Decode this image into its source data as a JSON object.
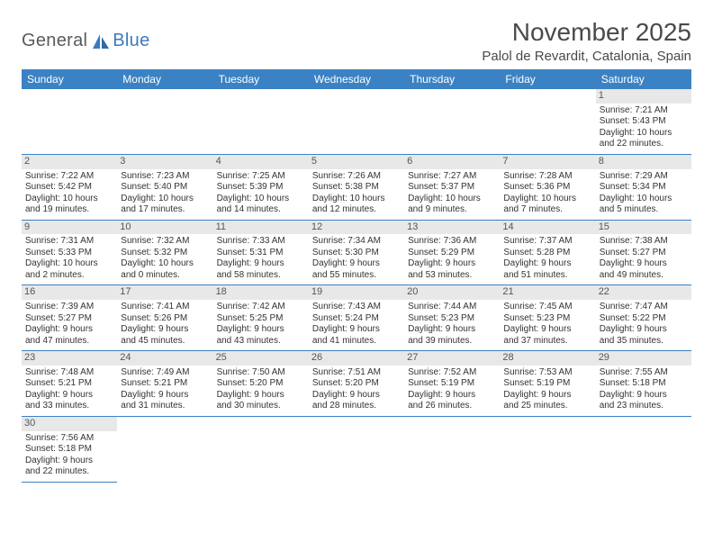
{
  "logo": {
    "text1": "General",
    "text2": "Blue"
  },
  "title": "November 2025",
  "location": "Palol de Revardit, Catalonia, Spain",
  "colors": {
    "header_bg": "#3b82c4",
    "header_text": "#ffffff",
    "border": "#3b82c4",
    "daynum_bg": "#e8e8e8",
    "body_text": "#333333",
    "logo_gray": "#5a5a5a",
    "logo_blue": "#3b7bbf"
  },
  "day_headers": [
    "Sunday",
    "Monday",
    "Tuesday",
    "Wednesday",
    "Thursday",
    "Friday",
    "Saturday"
  ],
  "weeks": [
    [
      {
        "n": "",
        "sr": "",
        "ss": "",
        "d1": "",
        "d2": ""
      },
      {
        "n": "",
        "sr": "",
        "ss": "",
        "d1": "",
        "d2": ""
      },
      {
        "n": "",
        "sr": "",
        "ss": "",
        "d1": "",
        "d2": ""
      },
      {
        "n": "",
        "sr": "",
        "ss": "",
        "d1": "",
        "d2": ""
      },
      {
        "n": "",
        "sr": "",
        "ss": "",
        "d1": "",
        "d2": ""
      },
      {
        "n": "",
        "sr": "",
        "ss": "",
        "d1": "",
        "d2": ""
      },
      {
        "n": "1",
        "sr": "Sunrise: 7:21 AM",
        "ss": "Sunset: 5:43 PM",
        "d1": "Daylight: 10 hours",
        "d2": "and 22 minutes."
      }
    ],
    [
      {
        "n": "2",
        "sr": "Sunrise: 7:22 AM",
        "ss": "Sunset: 5:42 PM",
        "d1": "Daylight: 10 hours",
        "d2": "and 19 minutes."
      },
      {
        "n": "3",
        "sr": "Sunrise: 7:23 AM",
        "ss": "Sunset: 5:40 PM",
        "d1": "Daylight: 10 hours",
        "d2": "and 17 minutes."
      },
      {
        "n": "4",
        "sr": "Sunrise: 7:25 AM",
        "ss": "Sunset: 5:39 PM",
        "d1": "Daylight: 10 hours",
        "d2": "and 14 minutes."
      },
      {
        "n": "5",
        "sr": "Sunrise: 7:26 AM",
        "ss": "Sunset: 5:38 PM",
        "d1": "Daylight: 10 hours",
        "d2": "and 12 minutes."
      },
      {
        "n": "6",
        "sr": "Sunrise: 7:27 AM",
        "ss": "Sunset: 5:37 PM",
        "d1": "Daylight: 10 hours",
        "d2": "and 9 minutes."
      },
      {
        "n": "7",
        "sr": "Sunrise: 7:28 AM",
        "ss": "Sunset: 5:36 PM",
        "d1": "Daylight: 10 hours",
        "d2": "and 7 minutes."
      },
      {
        "n": "8",
        "sr": "Sunrise: 7:29 AM",
        "ss": "Sunset: 5:34 PM",
        "d1": "Daylight: 10 hours",
        "d2": "and 5 minutes."
      }
    ],
    [
      {
        "n": "9",
        "sr": "Sunrise: 7:31 AM",
        "ss": "Sunset: 5:33 PM",
        "d1": "Daylight: 10 hours",
        "d2": "and 2 minutes."
      },
      {
        "n": "10",
        "sr": "Sunrise: 7:32 AM",
        "ss": "Sunset: 5:32 PM",
        "d1": "Daylight: 10 hours",
        "d2": "and 0 minutes."
      },
      {
        "n": "11",
        "sr": "Sunrise: 7:33 AM",
        "ss": "Sunset: 5:31 PM",
        "d1": "Daylight: 9 hours",
        "d2": "and 58 minutes."
      },
      {
        "n": "12",
        "sr": "Sunrise: 7:34 AM",
        "ss": "Sunset: 5:30 PM",
        "d1": "Daylight: 9 hours",
        "d2": "and 55 minutes."
      },
      {
        "n": "13",
        "sr": "Sunrise: 7:36 AM",
        "ss": "Sunset: 5:29 PM",
        "d1": "Daylight: 9 hours",
        "d2": "and 53 minutes."
      },
      {
        "n": "14",
        "sr": "Sunrise: 7:37 AM",
        "ss": "Sunset: 5:28 PM",
        "d1": "Daylight: 9 hours",
        "d2": "and 51 minutes."
      },
      {
        "n": "15",
        "sr": "Sunrise: 7:38 AM",
        "ss": "Sunset: 5:27 PM",
        "d1": "Daylight: 9 hours",
        "d2": "and 49 minutes."
      }
    ],
    [
      {
        "n": "16",
        "sr": "Sunrise: 7:39 AM",
        "ss": "Sunset: 5:27 PM",
        "d1": "Daylight: 9 hours",
        "d2": "and 47 minutes."
      },
      {
        "n": "17",
        "sr": "Sunrise: 7:41 AM",
        "ss": "Sunset: 5:26 PM",
        "d1": "Daylight: 9 hours",
        "d2": "and 45 minutes."
      },
      {
        "n": "18",
        "sr": "Sunrise: 7:42 AM",
        "ss": "Sunset: 5:25 PM",
        "d1": "Daylight: 9 hours",
        "d2": "and 43 minutes."
      },
      {
        "n": "19",
        "sr": "Sunrise: 7:43 AM",
        "ss": "Sunset: 5:24 PM",
        "d1": "Daylight: 9 hours",
        "d2": "and 41 minutes."
      },
      {
        "n": "20",
        "sr": "Sunrise: 7:44 AM",
        "ss": "Sunset: 5:23 PM",
        "d1": "Daylight: 9 hours",
        "d2": "and 39 minutes."
      },
      {
        "n": "21",
        "sr": "Sunrise: 7:45 AM",
        "ss": "Sunset: 5:23 PM",
        "d1": "Daylight: 9 hours",
        "d2": "and 37 minutes."
      },
      {
        "n": "22",
        "sr": "Sunrise: 7:47 AM",
        "ss": "Sunset: 5:22 PM",
        "d1": "Daylight: 9 hours",
        "d2": "and 35 minutes."
      }
    ],
    [
      {
        "n": "23",
        "sr": "Sunrise: 7:48 AM",
        "ss": "Sunset: 5:21 PM",
        "d1": "Daylight: 9 hours",
        "d2": "and 33 minutes."
      },
      {
        "n": "24",
        "sr": "Sunrise: 7:49 AM",
        "ss": "Sunset: 5:21 PM",
        "d1": "Daylight: 9 hours",
        "d2": "and 31 minutes."
      },
      {
        "n": "25",
        "sr": "Sunrise: 7:50 AM",
        "ss": "Sunset: 5:20 PM",
        "d1": "Daylight: 9 hours",
        "d2": "and 30 minutes."
      },
      {
        "n": "26",
        "sr": "Sunrise: 7:51 AM",
        "ss": "Sunset: 5:20 PM",
        "d1": "Daylight: 9 hours",
        "d2": "and 28 minutes."
      },
      {
        "n": "27",
        "sr": "Sunrise: 7:52 AM",
        "ss": "Sunset: 5:19 PM",
        "d1": "Daylight: 9 hours",
        "d2": "and 26 minutes."
      },
      {
        "n": "28",
        "sr": "Sunrise: 7:53 AM",
        "ss": "Sunset: 5:19 PM",
        "d1": "Daylight: 9 hours",
        "d2": "and 25 minutes."
      },
      {
        "n": "29",
        "sr": "Sunrise: 7:55 AM",
        "ss": "Sunset: 5:18 PM",
        "d1": "Daylight: 9 hours",
        "d2": "and 23 minutes."
      }
    ],
    [
      {
        "n": "30",
        "sr": "Sunrise: 7:56 AM",
        "ss": "Sunset: 5:18 PM",
        "d1": "Daylight: 9 hours",
        "d2": "and 22 minutes."
      },
      {
        "n": "",
        "sr": "",
        "ss": "",
        "d1": "",
        "d2": ""
      },
      {
        "n": "",
        "sr": "",
        "ss": "",
        "d1": "",
        "d2": ""
      },
      {
        "n": "",
        "sr": "",
        "ss": "",
        "d1": "",
        "d2": ""
      },
      {
        "n": "",
        "sr": "",
        "ss": "",
        "d1": "",
        "d2": ""
      },
      {
        "n": "",
        "sr": "",
        "ss": "",
        "d1": "",
        "d2": ""
      },
      {
        "n": "",
        "sr": "",
        "ss": "",
        "d1": "",
        "d2": ""
      }
    ]
  ]
}
